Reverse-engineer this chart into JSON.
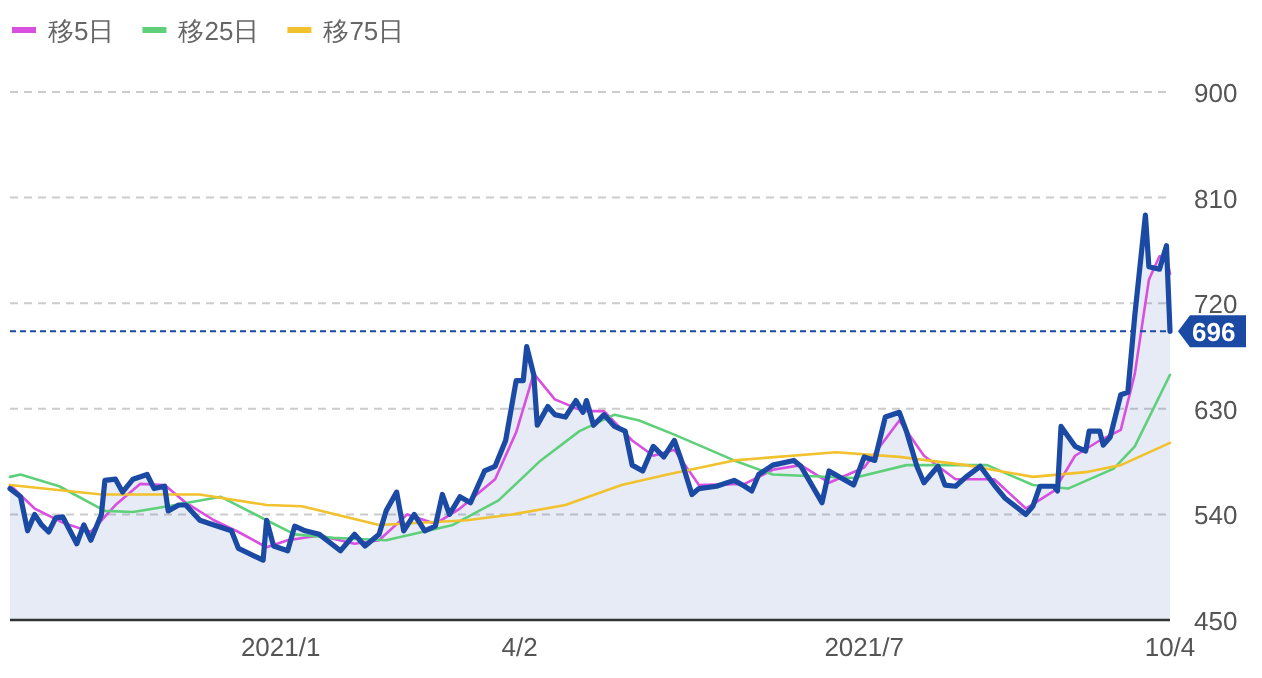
{
  "chart_data": {
    "type": "line",
    "legend": "top left",
    "grid": "y",
    "xlim": [
      "2020-11-08",
      "2021-10-04"
    ],
    "xticks": [
      {
        "value": "2021-01-24",
        "label": "2021/1"
      },
      {
        "value": "2021-04-02",
        "label": "4/2"
      },
      {
        "value": "2021-07-09",
        "label": "2021/7"
      },
      {
        "value": "2021-10-04",
        "label": "10/4"
      }
    ],
    "ylim": [
      450,
      900
    ],
    "yticks": [
      450,
      540,
      630,
      720,
      810,
      900
    ],
    "ref_lines": [
      {
        "axis": "y",
        "value": 696,
        "label": "696",
        "color": "#1b4aa5",
        "line_style": "dashed"
      }
    ],
    "series": [
      {
        "type": "area",
        "color": "#1b4aa5",
        "x": [
          "2020-11-08",
          "2020-11-11",
          "2020-11-13",
          "2020-11-15",
          "2020-11-17",
          "2020-11-19",
          "2020-11-21",
          "2020-11-23",
          "2020-11-27",
          "2020-11-29",
          "2020-12-01",
          "2020-12-04",
          "2020-12-05",
          "2020-12-08",
          "2020-12-10",
          "2020-12-13",
          "2020-12-17",
          "2020-12-19",
          "2020-12-22",
          "2020-12-23",
          "2020-12-26",
          "2020-12-28",
          "2021-01-01",
          "2021-01-05",
          "2021-01-10",
          "2021-01-12",
          "2021-01-19",
          "2021-01-20",
          "2021-01-22",
          "2021-01-26",
          "2021-01-28",
          "2021-01-31",
          "2021-02-04",
          "2021-02-10",
          "2021-02-14",
          "2021-02-17",
          "2021-02-21",
          "2021-02-23",
          "2021-02-26",
          "2021-02-28",
          "2021-03-03",
          "2021-03-06",
          "2021-03-09",
          "2021-03-11",
          "2021-03-13",
          "2021-03-16",
          "2021-03-19",
          "2021-03-23",
          "2021-03-26",
          "2021-03-29",
          "2021-04-01",
          "2021-04-03",
          "2021-04-04",
          "2021-04-06",
          "2021-04-07",
          "2021-04-10",
          "2021-04-12",
          "2021-04-15",
          "2021-04-18",
          "2021-04-20",
          "2021-04-21",
          "2021-04-23",
          "2021-04-26",
          "2021-04-29",
          "2021-05-02",
          "2021-05-04",
          "2021-05-07",
          "2021-05-10",
          "2021-05-13",
          "2021-05-16",
          "2021-05-18",
          "2021-05-21",
          "2021-05-23",
          "2021-05-28",
          "2021-06-02",
          "2021-06-05",
          "2021-06-07",
          "2021-06-09",
          "2021-06-13",
          "2021-06-19",
          "2021-06-21",
          "2021-06-27",
          "2021-06-29",
          "2021-07-06",
          "2021-07-09",
          "2021-07-12",
          "2021-07-15",
          "2021-07-19",
          "2021-07-21",
          "2021-07-24",
          "2021-07-26",
          "2021-07-30",
          "2021-08-01",
          "2021-08-04",
          "2021-08-07",
          "2021-08-11",
          "2021-08-15",
          "2021-08-18",
          "2021-08-24",
          "2021-08-26",
          "2021-08-28",
          "2021-09-01",
          "2021-09-02",
          "2021-09-03",
          "2021-09-07",
          "2021-09-10",
          "2021-09-11",
          "2021-09-14",
          "2021-09-15",
          "2021-09-17",
          "2021-09-20",
          "2021-09-22",
          "2021-09-24",
          "2021-09-27",
          "2021-09-28",
          "2021-10-01",
          "2021-10-03",
          "2021-10-04"
        ],
        "values": [
          562,
          555,
          526,
          540,
          531,
          525,
          537,
          538,
          515,
          531,
          518,
          540,
          569,
          570,
          559,
          570,
          574,
          562,
          564,
          543,
          548,
          548,
          535,
          531,
          526,
          511,
          501,
          535,
          513,
          509,
          530,
          526,
          523,
          509,
          523,
          513,
          523,
          543,
          559,
          526,
          540,
          526,
          530,
          557,
          540,
          555,
          550,
          577,
          581,
          603,
          654,
          654,
          683,
          659,
          616,
          632,
          625,
          623,
          637,
          627,
          637,
          616,
          625,
          615,
          611,
          582,
          577,
          598,
          589,
          603,
          586,
          557,
          562,
          564,
          569,
          564,
          560,
          574,
          582,
          586,
          581,
          550,
          577,
          565,
          589,
          586,
          623,
          627,
          611,
          581,
          567,
          581,
          565,
          564,
          572,
          581,
          565,
          554,
          540,
          547,
          564,
          564,
          560,
          615,
          598,
          594,
          611,
          611,
          599,
          606,
          642,
          644,
          710,
          795,
          751,
          749,
          769,
          696
        ]
      },
      {
        "name": "移5日",
        "color": "#d94fe0",
        "x": [
          "2020-11-08",
          "2020-11-15",
          "2020-11-23",
          "2020-12-01",
          "2020-12-08",
          "2020-12-15",
          "2020-12-22",
          "2020-12-28",
          "2021-01-05",
          "2021-01-12",
          "2021-01-20",
          "2021-01-26",
          "2021-02-04",
          "2021-02-14",
          "2021-02-21",
          "2021-03-01",
          "2021-03-09",
          "2021-03-16",
          "2021-03-26",
          "2021-04-01",
          "2021-04-06",
          "2021-04-12",
          "2021-04-20",
          "2021-04-26",
          "2021-05-04",
          "2021-05-10",
          "2021-05-16",
          "2021-05-23",
          "2021-06-05",
          "2021-06-13",
          "2021-06-21",
          "2021-06-29",
          "2021-07-09",
          "2021-07-19",
          "2021-07-26",
          "2021-08-04",
          "2021-08-15",
          "2021-08-24",
          "2021-09-01",
          "2021-09-07",
          "2021-09-14",
          "2021-09-20",
          "2021-09-24",
          "2021-09-28",
          "2021-10-01",
          "2021-10-03",
          "2021-10-04"
        ],
        "values": [
          565,
          545,
          533,
          525,
          548,
          566,
          565,
          550,
          535,
          525,
          512,
          518,
          522,
          515,
          518,
          540,
          532,
          545,
          570,
          610,
          660,
          638,
          628,
          628,
          603,
          590,
          595,
          565,
          566,
          578,
          582,
          567,
          580,
          620,
          590,
          570,
          570,
          545,
          560,
          590,
          603,
          612,
          660,
          740,
          760,
          760,
          745
        ]
      },
      {
        "name": "移25日",
        "color": "#5fd07a",
        "x": [
          "2020-11-08",
          "2020-11-11",
          "2020-11-22",
          "2020-12-05",
          "2020-12-13",
          "2020-12-25",
          "2021-01-07",
          "2021-01-20",
          "2021-01-28",
          "2021-02-08",
          "2021-02-23",
          "2021-03-14",
          "2021-03-27",
          "2021-04-08",
          "2021-04-19",
          "2021-04-29",
          "2021-05-06",
          "2021-05-16",
          "2021-06-02",
          "2021-06-13",
          "2021-07-06",
          "2021-07-21",
          "2021-08-07",
          "2021-08-13",
          "2021-08-26",
          "2021-09-05",
          "2021-09-18",
          "2021-09-24",
          "2021-10-04"
        ],
        "values": [
          572,
          574,
          564,
          543,
          542,
          548,
          555,
          535,
          523,
          520,
          518,
          531,
          552,
          586,
          611,
          625,
          620,
          608,
          586,
          574,
          571,
          582,
          582,
          582,
          565,
          562,
          579,
          598,
          659
        ]
      },
      {
        "name": "移75日",
        "color": "#f2c12e",
        "x": [
          "2020-11-08",
          "2020-12-04",
          "2021-01-01",
          "2021-01-20",
          "2021-01-30",
          "2021-02-21",
          "2021-03-18",
          "2021-03-31",
          "2021-04-15",
          "2021-05-01",
          "2021-05-14",
          "2021-06-02",
          "2021-07-01",
          "2021-07-19",
          "2021-08-07",
          "2021-08-26",
          "2021-09-10",
          "2021-09-20",
          "2021-10-04"
        ],
        "values": [
          565,
          557,
          557,
          548,
          547,
          531,
          535,
          540,
          548,
          565,
          574,
          586,
          593,
          589,
          582,
          572,
          576,
          582,
          601
        ]
      }
    ]
  }
}
